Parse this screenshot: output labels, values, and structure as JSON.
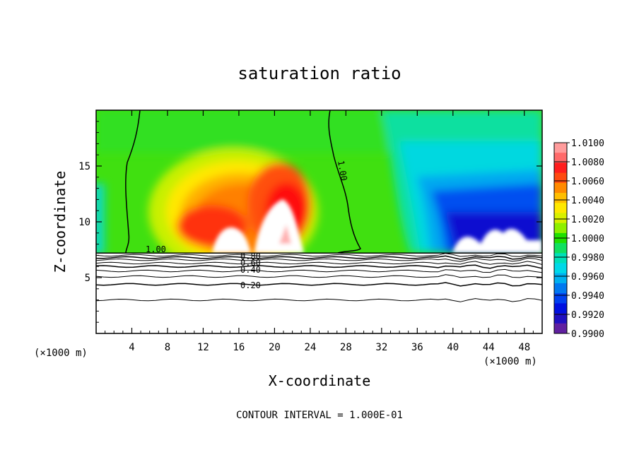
{
  "chart_data": {
    "type": "heatmap",
    "title": "saturation ratio",
    "xlabel": "X-coordinate",
    "ylabel": "Z-coordinate",
    "x_unit_label": "(×1000 m)",
    "x_unit_label_right": "(×1000 m)",
    "footer": "CONTOUR INTERVAL = 1.000E-01",
    "xlim": [
      0,
      50
    ],
    "ylim": [
      0,
      20
    ],
    "x_ticks": [
      4,
      8,
      12,
      16,
      20,
      24,
      28,
      32,
      36,
      40,
      44,
      48
    ],
    "y_ticks": [
      5,
      10,
      15
    ],
    "colorbar": {
      "min": 0.99,
      "max": 1.01,
      "labels": [
        "1.0100",
        "1.0080",
        "1.0060",
        "1.0040",
        "1.0020",
        "1.0000",
        "0.9980",
        "0.9960",
        "0.9940",
        "0.9920",
        "0.9900"
      ],
      "colors": [
        "#ff9c9c",
        "#ff6a6a",
        "#ff1e1e",
        "#ff4a10",
        "#ff8a00",
        "#ffbe00",
        "#ffe800",
        "#d8f000",
        "#8ef000",
        "#20e000",
        "#10e060",
        "#00e0b8",
        "#00d8e8",
        "#00b0f0",
        "#0078f0",
        "#0040f0",
        "#0010e0",
        "#2010c0",
        "#6020a0"
      ]
    },
    "ground_level_km": 7.2,
    "contours": [
      {
        "label": "1.00",
        "note": "left boundary"
      },
      {
        "label": "1.00",
        "note": "right boundary"
      },
      {
        "label": "0.80"
      },
      {
        "label": "0.60"
      },
      {
        "label": "0.40"
      },
      {
        "label": "0.20"
      }
    ],
    "lower_contour_levels_km": [
      7.0,
      6.8,
      6.6,
      6.3,
      6.0,
      5.6,
      5.1,
      4.4,
      3.0
    ]
  }
}
